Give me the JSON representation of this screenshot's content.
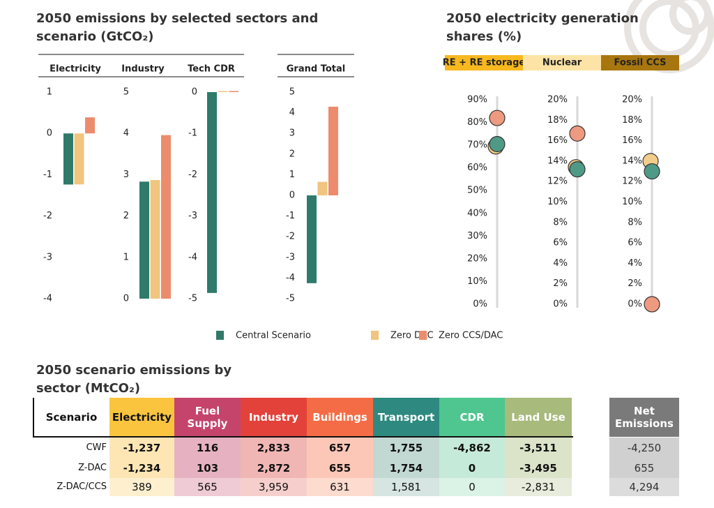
{
  "chart_data": [
    {
      "type": "bar",
      "title": "2050 emissions by selected sectors and scenario (GtCO₂)",
      "categories": [
        "Electricity",
        "Industry",
        "Tech CDR",
        "Grand Total"
      ],
      "ylims": [
        [
          -4,
          1
        ],
        [
          0,
          5
        ],
        [
          -5,
          0
        ],
        [
          -5,
          5
        ]
      ],
      "yticks": [
        [
          -4,
          -3,
          -2,
          -1,
          0,
          1
        ],
        [
          0,
          1,
          2,
          3,
          4,
          5
        ],
        [
          -5,
          -4,
          -3,
          -2,
          -1,
          0
        ],
        [
          -5,
          -4,
          -3,
          -2,
          -1,
          0,
          1,
          2,
          3,
          4,
          5
        ]
      ],
      "series": [
        {
          "name": "Central Scenario",
          "color": "#2f7a6a",
          "values": [
            -1.237,
            2.833,
            -4.862,
            -4.25
          ]
        },
        {
          "name": "Zero DAC",
          "color": "#f0c580",
          "values": [
            -1.234,
            2.872,
            0,
            0.655
          ]
        },
        {
          "name": "Zero CCS/DAC",
          "color": "#ec8c6c",
          "values": [
            0.389,
            3.959,
            0,
            4.294
          ]
        }
      ]
    },
    {
      "type": "dot",
      "title": "2050 electricity generation shares (%)",
      "categories": [
        "RE + RE storage",
        "Nuclear",
        "Fossil CCS"
      ],
      "ylims": [
        [
          0,
          90
        ],
        [
          0,
          20
        ],
        [
          0,
          20
        ]
      ],
      "yticks": [
        [
          {
            "value": 0,
            "label": "0%"
          },
          {
            "value": 10,
            "label": "10%"
          },
          {
            "value": 20,
            "label": "20%"
          },
          {
            "value": 30,
            "label": "30%"
          },
          {
            "value": 40,
            "label": "40%"
          },
          {
            "value": 50,
            "label": "50%"
          },
          {
            "value": 60,
            "label": "60%"
          },
          {
            "value": 70,
            "label": "70%"
          },
          {
            "value": 80,
            "label": "80%"
          },
          {
            "value": 90,
            "label": "90%"
          }
        ],
        [
          {
            "value": 0,
            "label": "0%"
          },
          {
            "value": 2,
            "label": "2%"
          },
          {
            "value": 4,
            "label": "4%"
          },
          {
            "value": 6,
            "label": "6%"
          },
          {
            "value": 8,
            "label": "8%"
          },
          {
            "value": 10,
            "label": "10%"
          },
          {
            "value": 12,
            "label": "12%"
          },
          {
            "value": 14,
            "label": "14%"
          },
          {
            "value": 16,
            "label": "16%"
          },
          {
            "value": 18,
            "label": "18%"
          },
          {
            "value": 20,
            "label": "20%"
          }
        ],
        [
          {
            "value": 0,
            "label": "0%"
          },
          {
            "value": 2,
            "label": "2%"
          },
          {
            "value": 4,
            "label": "4%"
          },
          {
            "value": 6,
            "label": "6%"
          },
          {
            "value": 8,
            "label": "8%"
          },
          {
            "value": 10,
            "label": "10%"
          },
          {
            "value": 12,
            "label": "12%"
          },
          {
            "value": 14,
            "label": "14%"
          },
          {
            "value": 16,
            "label": "16%"
          },
          {
            "value": 18,
            "label": "18%"
          },
          {
            "value": 20,
            "label": "20%"
          }
        ]
      ],
      "category_colors": [
        "#f8b820",
        "#fde4a6",
        "#a8760e"
      ],
      "series": [
        {
          "color": "#4f9a86",
          "values": [
            70.5,
            13.2,
            13
          ]
        },
        {
          "color": "#f2cc8a",
          "values": [
            69.5,
            13.4,
            14
          ]
        },
        {
          "color": "#ee9a80",
          "values": [
            82,
            16.7,
            0
          ]
        }
      ]
    }
  ],
  "table": {
    "title": "2050 scenario emissions by sector (MtCO₂)",
    "header": [
      "Scenario",
      "Electricity",
      "Fuel Supply",
      "Industry",
      "Buildings",
      "Transport",
      "CDR",
      "Land Use",
      "Net Emissions"
    ],
    "rows": [
      [
        "CWF",
        "-1,237",
        "116",
        "2,833",
        "657",
        "1,755",
        "-4,862",
        "-3,511",
        "-4,250"
      ],
      [
        "Z-DAC",
        "-1,234",
        "103",
        "2,872",
        "655",
        "1,754",
        "0",
        "-3,495",
        "655"
      ],
      [
        "Z-DAC/CCS",
        "389",
        "565",
        "3,959",
        "631",
        "1,581",
        "0",
        "-2,831",
        "4,294"
      ]
    ]
  }
}
